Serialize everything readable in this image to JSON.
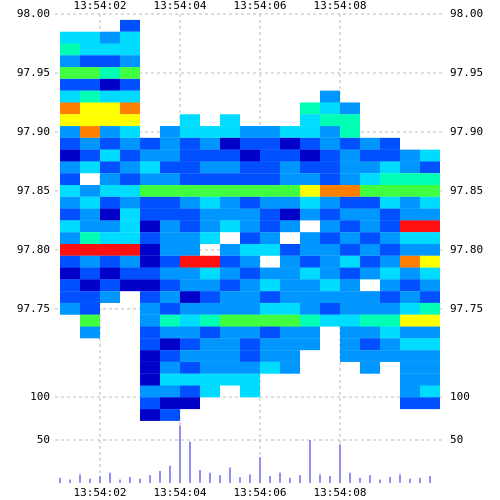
{
  "chart_data": {
    "type": "heatmap",
    "xlim": [
      0.875,
      10.625
    ],
    "xticks": [
      {
        "value": 2,
        "label": "13:54:02"
      },
      {
        "value": 4,
        "label": "13:54:04"
      },
      {
        "value": 6,
        "label": "13:54:06"
      },
      {
        "value": 8,
        "label": "13:54:08"
      }
    ],
    "ylim": [
      97.66,
      98.0
    ],
    "yticks": [
      {
        "value": 97.75,
        "label": "97.75"
      },
      {
        "value": 97.8,
        "label": "97.80"
      },
      {
        "value": 97.85,
        "label": "97.85"
      },
      {
        "value": 97.9,
        "label": "97.90"
      },
      {
        "value": 97.95,
        "label": "97.95"
      },
      {
        "value": 98.0,
        "label": "98.00"
      }
    ],
    "grid": true,
    "colorscale": [
      "#0000c8",
      "#0050ff",
      "#0096ff",
      "#00dcff",
      "#00ffb4",
      "#40ff40",
      "#ffff00",
      "#ff8000",
      "#ff1010"
    ],
    "x": [
      1.25,
      1.75,
      2.25,
      2.75,
      3.25,
      3.75,
      4.25,
      4.75,
      5.25,
      5.75,
      6.25,
      6.75,
      7.25,
      7.75,
      8.25,
      8.75,
      9.25,
      9.75,
      10.25
    ],
    "y": [
      97.99,
      97.98,
      97.97,
      97.96,
      97.95,
      97.94,
      97.93,
      97.92,
      97.91,
      97.9,
      97.89,
      97.88,
      97.87,
      97.86,
      97.85,
      97.84,
      97.83,
      97.82,
      97.81,
      97.8,
      97.79,
      97.78,
      97.77,
      97.76,
      97.75,
      97.74,
      97.73,
      97.72,
      97.71,
      97.7,
      97.69,
      97.68,
      97.67,
      97.66
    ],
    "z": [
      [
        null,
        null,
        null,
        1,
        null,
        null,
        null,
        null,
        null,
        null,
        null,
        null,
        null,
        null,
        null,
        null,
        null,
        null,
        null
      ],
      [
        3,
        3,
        2,
        3,
        null,
        null,
        null,
        null,
        null,
        null,
        null,
        null,
        null,
        null,
        null,
        null,
        null,
        null,
        null
      ],
      [
        4,
        3,
        3,
        3,
        null,
        null,
        null,
        null,
        null,
        null,
        null,
        null,
        null,
        null,
        null,
        null,
        null,
        null,
        null
      ],
      [
        2,
        1,
        1,
        2,
        null,
        null,
        null,
        null,
        null,
        null,
        null,
        null,
        null,
        null,
        null,
        null,
        null,
        null,
        null
      ],
      [
        5,
        5,
        4,
        5,
        null,
        null,
        null,
        null,
        null,
        null,
        null,
        null,
        null,
        null,
        null,
        null,
        null,
        null,
        null
      ],
      [
        1,
        1,
        0,
        1,
        null,
        null,
        null,
        null,
        null,
        null,
        null,
        null,
        null,
        null,
        null,
        null,
        null,
        null,
        null
      ],
      [
        3,
        4,
        3,
        3,
        null,
        null,
        null,
        null,
        null,
        null,
        null,
        null,
        null,
        2,
        null,
        null,
        null,
        null,
        null
      ],
      [
        7,
        6,
        6,
        7,
        null,
        null,
        null,
        null,
        null,
        null,
        null,
        null,
        4,
        3,
        2,
        null,
        null,
        null,
        null
      ],
      [
        6,
        6,
        6,
        6,
        null,
        null,
        3,
        null,
        3,
        null,
        null,
        null,
        3,
        4,
        4,
        null,
        null,
        null,
        null
      ],
      [
        2,
        7,
        2,
        3,
        null,
        2,
        3,
        3,
        3,
        2,
        2,
        3,
        3,
        2,
        4,
        null,
        null,
        null,
        null
      ],
      [
        1,
        2,
        1,
        2,
        1,
        2,
        1,
        2,
        0,
        1,
        1,
        0,
        1,
        2,
        1,
        2,
        1,
        null,
        null
      ],
      [
        0,
        1,
        3,
        1,
        2,
        2,
        1,
        1,
        1,
        0,
        1,
        1,
        0,
        1,
        2,
        1,
        1,
        2,
        3
      ],
      [
        2,
        3,
        1,
        2,
        3,
        1,
        1,
        2,
        2,
        1,
        1,
        2,
        1,
        1,
        2,
        2,
        3,
        2,
        1
      ],
      [
        1,
        null,
        2,
        1,
        2,
        2,
        1,
        1,
        1,
        1,
        1,
        2,
        2,
        1,
        2,
        3,
        4,
        4,
        4
      ],
      [
        3,
        2,
        3,
        3,
        5,
        5,
        5,
        5,
        5,
        5,
        5,
        5,
        6,
        7,
        7,
        5,
        5,
        5,
        5
      ],
      [
        2,
        3,
        1,
        2,
        1,
        1,
        2,
        3,
        2,
        1,
        2,
        2,
        3,
        2,
        1,
        1,
        3,
        2,
        3
      ],
      [
        1,
        2,
        0,
        3,
        1,
        1,
        1,
        2,
        2,
        2,
        1,
        0,
        2,
        1,
        2,
        2,
        1,
        2,
        2
      ],
      [
        3,
        2,
        2,
        3,
        0,
        2,
        1,
        2,
        3,
        2,
        1,
        2,
        null,
        2,
        1,
        2,
        1,
        8,
        8
      ],
      [
        2,
        4,
        3,
        3,
        1,
        2,
        2,
        3,
        null,
        1,
        2,
        null,
        2,
        1,
        2,
        1,
        2,
        3,
        3
      ],
      [
        8,
        8,
        8,
        8,
        0,
        2,
        2,
        null,
        2,
        3,
        3,
        1,
        2,
        2,
        1,
        2,
        1,
        2,
        2
      ],
      [
        1,
        2,
        1,
        2,
        0,
        1,
        8,
        8,
        1,
        2,
        null,
        2,
        1,
        2,
        3,
        1,
        2,
        7,
        6
      ],
      [
        0,
        1,
        0,
        1,
        1,
        2,
        2,
        3,
        2,
        1,
        2,
        2,
        3,
        2,
        1,
        2,
        3,
        2,
        3
      ],
      [
        1,
        0,
        1,
        0,
        0,
        1,
        2,
        2,
        1,
        2,
        3,
        2,
        2,
        3,
        2,
        null,
        2,
        1,
        2
      ],
      [
        1,
        1,
        2,
        null,
        1,
        2,
        0,
        1,
        2,
        2,
        1,
        2,
        2,
        2,
        2,
        2,
        1,
        2,
        1
      ],
      [
        2,
        1,
        null,
        null,
        2,
        1,
        2,
        2,
        2,
        2,
        3,
        3,
        2,
        1,
        2,
        2,
        2,
        3,
        4
      ],
      [
        null,
        5,
        null,
        null,
        2,
        4,
        3,
        4,
        5,
        5,
        5,
        5,
        4,
        3,
        3,
        4,
        4,
        6,
        6
      ],
      [
        null,
        2,
        null,
        null,
        1,
        2,
        2,
        1,
        2,
        2,
        1,
        2,
        2,
        null,
        2,
        2,
        3,
        2,
        2
      ],
      [
        null,
        null,
        null,
        null,
        1,
        0,
        1,
        2,
        2,
        1,
        2,
        2,
        2,
        null,
        2,
        1,
        2,
        3,
        3
      ],
      [
        null,
        null,
        null,
        null,
        0,
        1,
        2,
        2,
        2,
        1,
        2,
        2,
        null,
        null,
        2,
        2,
        2,
        2,
        2
      ],
      [
        null,
        null,
        null,
        null,
        0,
        2,
        1,
        2,
        2,
        2,
        3,
        2,
        null,
        null,
        null,
        2,
        null,
        2,
        2
      ],
      [
        null,
        null,
        null,
        null,
        0,
        3,
        3,
        3,
        3,
        3,
        null,
        null,
        null,
        null,
        null,
        null,
        null,
        2,
        2
      ],
      [
        null,
        null,
        null,
        null,
        2,
        2,
        1,
        3,
        null,
        3,
        null,
        null,
        null,
        null,
        null,
        null,
        null,
        2,
        3
      ],
      [
        null,
        null,
        null,
        null,
        1,
        0,
        0,
        null,
        null,
        null,
        null,
        null,
        null,
        null,
        null,
        null,
        null,
        1,
        1
      ],
      [
        null,
        null,
        null,
        null,
        0,
        1,
        null,
        null,
        null,
        null,
        null,
        null,
        null,
        null,
        null,
        null,
        null,
        null,
        null
      ]
    ],
    "volume": {
      "color": "#9090f0",
      "ylim": [
        0,
        100
      ],
      "yticks": [
        50,
        100
      ],
      "x": [
        1.0,
        1.25,
        1.5,
        1.75,
        2.0,
        2.25,
        2.5,
        2.75,
        3.0,
        3.25,
        3.5,
        3.75,
        4.0,
        4.25,
        4.5,
        4.75,
        5.0,
        5.25,
        5.5,
        5.75,
        6.0,
        6.25,
        6.5,
        6.75,
        7.0,
        7.25,
        7.5,
        7.75,
        8.0,
        8.25,
        8.5,
        8.75,
        9.0,
        9.25,
        9.5,
        9.75,
        10.0,
        10.25
      ],
      "values": [
        6,
        4,
        10,
        5,
        8,
        12,
        4,
        7,
        5,
        9,
        14,
        20,
        67,
        48,
        15,
        12,
        9,
        18,
        7,
        10,
        30,
        8,
        12,
        6,
        9,
        50,
        10,
        8,
        45,
        12,
        6,
        9,
        4,
        7,
        10,
        5,
        6,
        8
      ]
    }
  }
}
